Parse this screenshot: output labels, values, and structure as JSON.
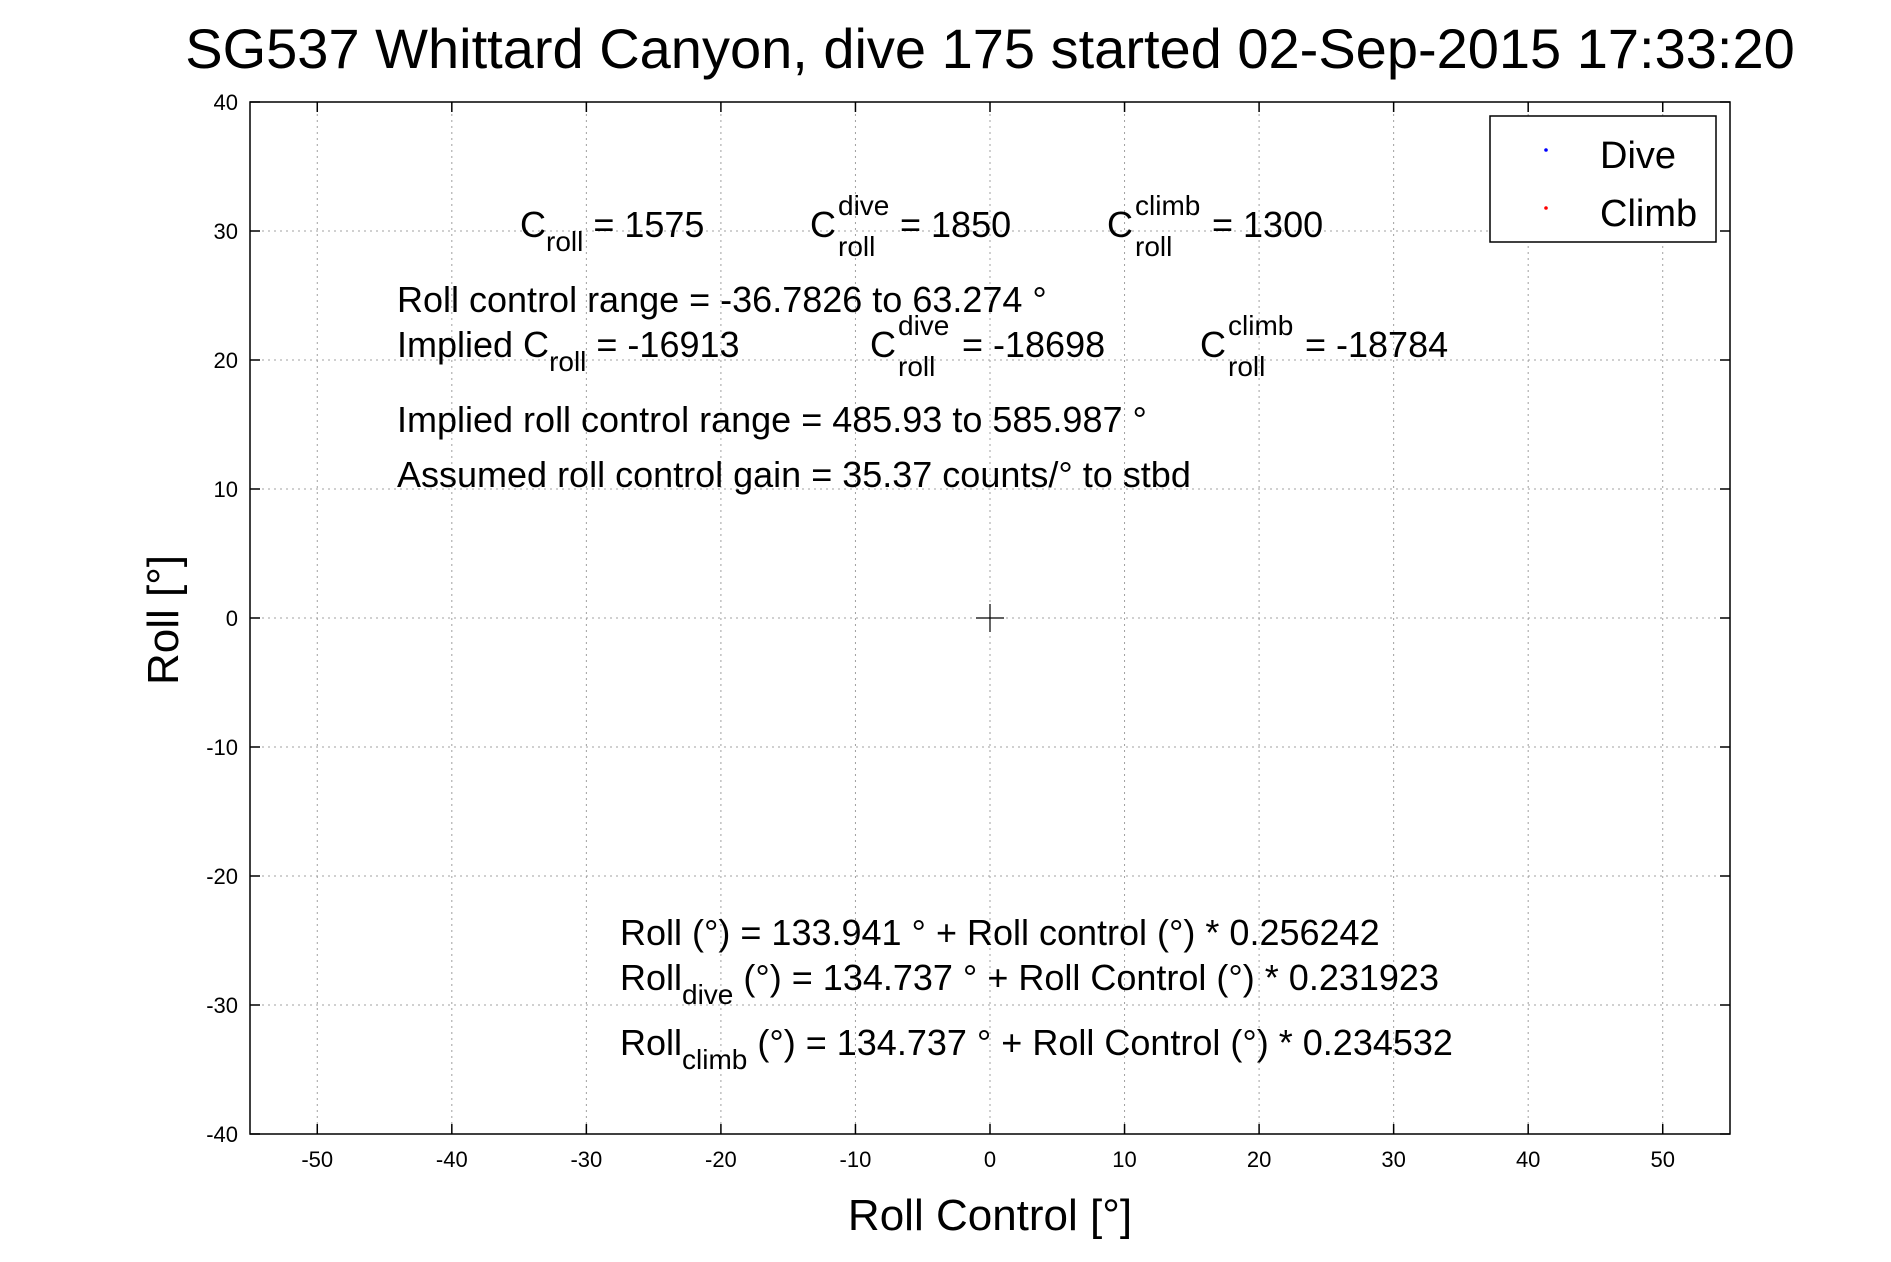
{
  "chart_data": {
    "type": "scatter",
    "title": "SG537 Whittard Canyon, dive 175 started 02-Sep-2015 17:33:20",
    "xlabel": "Roll Control [°]",
    "ylabel": "Roll [°]",
    "xlim": [
      -55,
      55
    ],
    "ylim": [
      -40,
      40
    ],
    "xticks": [
      -50,
      -40,
      -30,
      -20,
      -10,
      0,
      10,
      20,
      30,
      40,
      50
    ],
    "yticks": [
      -40,
      -30,
      -20,
      -10,
      0,
      10,
      20,
      30,
      40
    ],
    "grid": true,
    "legend_position": "top-right",
    "series": [
      {
        "name": "Dive",
        "color": "#0000ff",
        "marker": "dot",
        "x": [],
        "y": []
      },
      {
        "name": "Climb",
        "color": "#ff0000",
        "marker": "dot",
        "x": [],
        "y": []
      }
    ],
    "center_marker": {
      "x": 0,
      "y": 0,
      "marker": "plus"
    },
    "annotations": {
      "c_roll": {
        "main": "C",
        "sub": "roll",
        "rest": " = 1575"
      },
      "c_roll_dive": {
        "main": "C",
        "sup": "dive",
        "sub": "roll",
        "rest": " = 1850"
      },
      "c_roll_climb": {
        "main": "C",
        "sup": "climb",
        "sub": "roll",
        "rest": " = 1300"
      },
      "roll_control_range": "Roll control range = -36.7826 to 63.274 °",
      "implied_c_roll": {
        "prefix": "Implied C",
        "sub": "roll",
        "rest": " = -16913"
      },
      "implied_c_roll_dive": {
        "main": "C",
        "sup": "dive",
        "sub": "roll",
        "rest": " = -18698"
      },
      "implied_c_roll_climb": {
        "main": "C",
        "sup": "climb",
        "sub": "roll",
        "rest": " = -18784"
      },
      "implied_range": "Implied roll control range = 485.93 to 585.987 °",
      "assumed_gain": "Assumed roll control gain = 35.37 counts/° to stbd",
      "fit_all": "Roll (°) = 133.941 ° + Roll control (°) * 0.256242",
      "fit_dive": {
        "main": "Roll",
        "sub": "dive",
        "rest": " (°) = 134.737 ° + Roll Control (°) * 0.231923"
      },
      "fit_climb": {
        "main": "Roll",
        "sub": "climb",
        "rest": " (°) = 134.737 ° + Roll Control (°) * 0.234532"
      }
    }
  }
}
